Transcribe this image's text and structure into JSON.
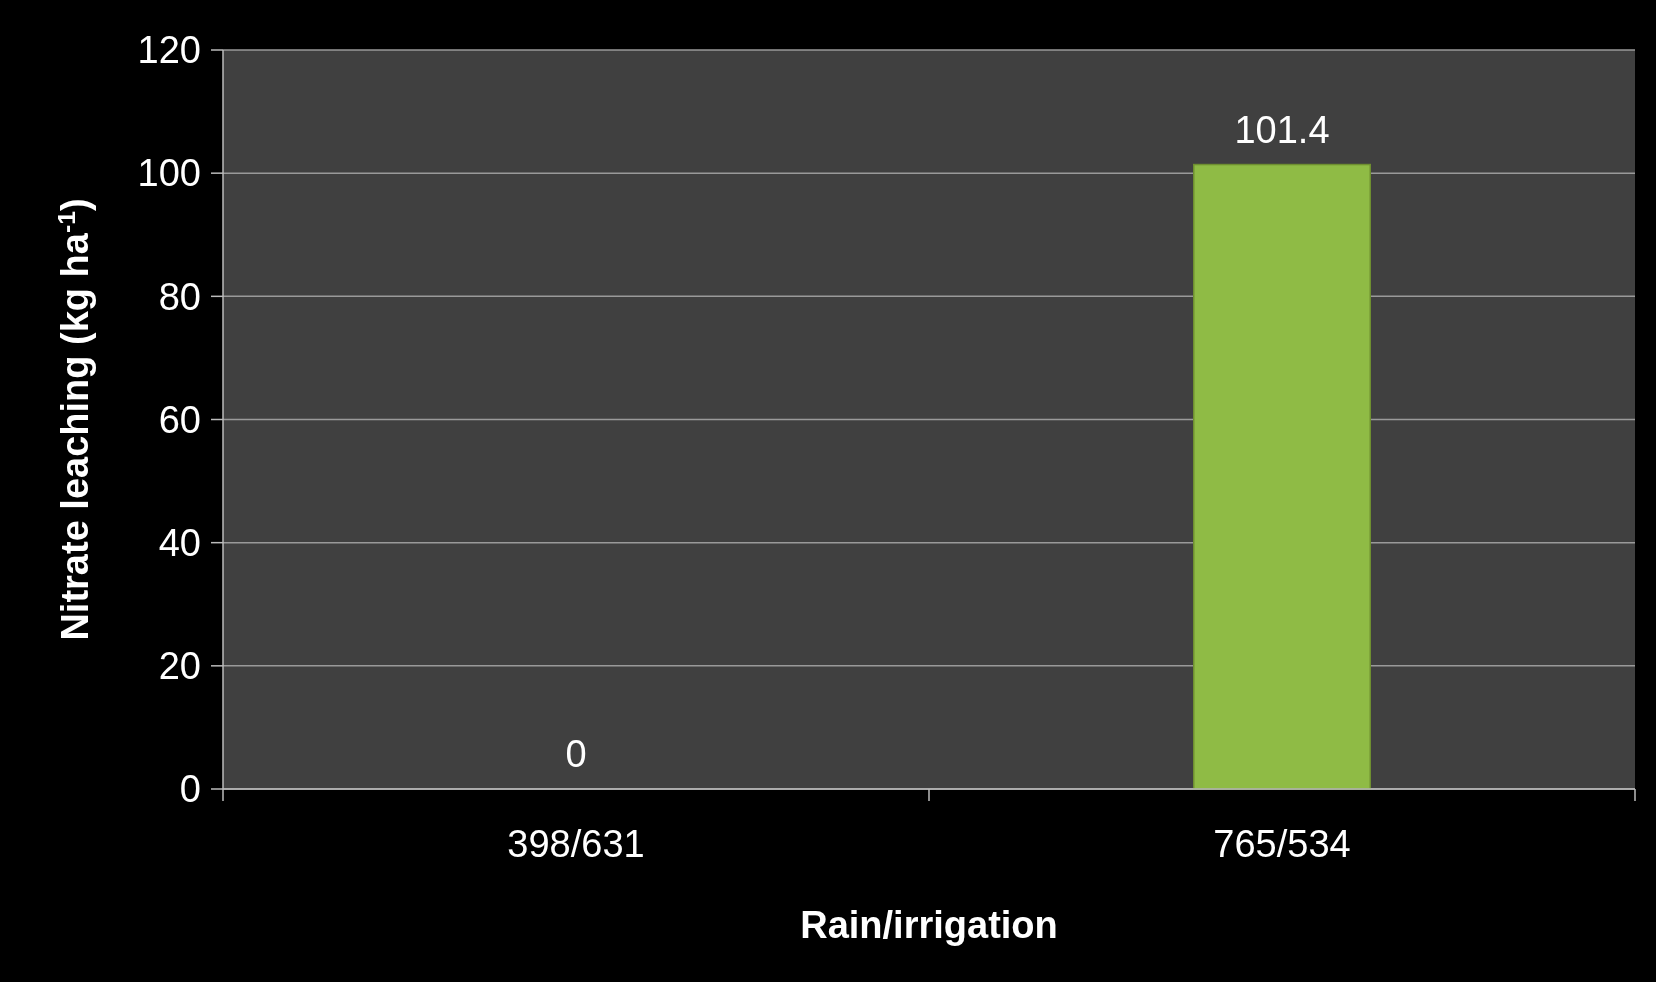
{
  "chart_data": {
    "type": "bar",
    "xlabel": "Rain/irrigation",
    "ylabel": "Nitrate leaching (kg ha$^{-1}$)",
    "categories": [
      "398/631",
      "765/534"
    ],
    "values": [
      0,
      101.4
    ],
    "color": "#8fbb45",
    "ylim": [
      0,
      120
    ],
    "yticks": [
      0,
      20,
      40,
      60,
      80,
      100,
      120
    ],
    "grid": "y",
    "data_labels": true
  }
}
